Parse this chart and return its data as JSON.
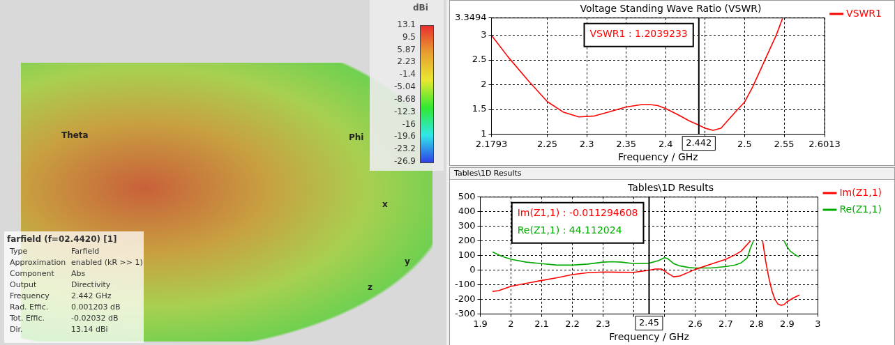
{
  "chart_data": [
    {
      "type": "other",
      "title": "farfield (f=02.4420) [1]",
      "clabel": "dBi",
      "annotations": [
        "Type",
        "Farfield",
        "Approximation",
        "enabled (kR >> 1)",
        "Component",
        "Abs",
        "Output",
        "Directivity",
        "Frequency",
        "2.442 GHz",
        "Rad. Effic.",
        "0.001203 dB",
        "Tot. Effic.",
        "-0.02032 dB",
        "Dir.",
        "13.14 dBi",
        "Theta",
        "Phi",
        "x",
        "y",
        "z",
        "13.1",
        "9.5",
        "5.87",
        "2.23",
        "-1.4",
        "-5.04",
        "-8.68",
        "-12.3",
        "-16",
        "-19.6",
        "-23.2",
        "-26.9"
      ]
    },
    {
      "type": "line",
      "title": "Voltage Standing Wave Ratio (VSWR)",
      "xlabel": "Frequency / GHz",
      "legend": "right",
      "grid": true,
      "xlim": [
        2.1793,
        2.6013
      ],
      "xticks": [
        2.1793,
        2.25,
        2.3,
        2.35,
        2.4,
        {
          "value": 2.45,
          "label": null
        },
        2.5,
        2.55,
        2.6013
      ],
      "ylim": [
        1,
        3.3494
      ],
      "yticks": [
        1,
        1.5,
        2,
        2.5,
        3,
        3.3494
      ],
      "series": [
        {
          "name": "VSWR1",
          "color": "#ff0000",
          "x": [
            2.1793,
            2.2,
            2.225,
            2.25,
            2.27,
            2.29,
            2.31,
            2.33,
            2.35,
            2.37,
            2.38,
            2.39,
            2.4,
            2.415,
            2.43,
            2.44,
            2.45,
            2.46,
            2.47,
            2.48,
            2.49,
            2.5,
            2.51,
            2.52,
            2.53,
            2.54,
            2.548
          ],
          "values": [
            3.0,
            2.57,
            2.1,
            1.66,
            1.45,
            1.35,
            1.37,
            1.46,
            1.55,
            1.6,
            1.6,
            1.58,
            1.52,
            1.4,
            1.27,
            1.2,
            1.12,
            1.08,
            1.12,
            1.3,
            1.48,
            1.65,
            1.95,
            2.3,
            2.65,
            3.0,
            3.34
          ]
        }
      ],
      "ref_lines": [
        {
          "axis": "x",
          "value": 2.442,
          "label": "2.442",
          "color": "#000000"
        }
      ],
      "annotations": [
        "VSWR1 : 1.2039233"
      ]
    },
    {
      "type": "line",
      "subtitle": "Tables\\1D Results",
      "title": "Tables\\1D Results",
      "xlabel": "Frequency / GHz",
      "legend": "right",
      "grid": true,
      "xlim": [
        1.9,
        3
      ],
      "xticks": [
        1.9,
        2,
        2.1,
        2.2,
        2.3,
        {
          "value": 2.4,
          "label": null
        },
        {
          "value": 2.5,
          "label": null
        },
        2.6,
        2.7,
        2.8,
        2.9,
        3
      ],
      "ylim": [
        -300,
        500
      ],
      "yticks": [
        -300,
        -200,
        -100,
        0,
        100,
        200,
        300,
        400,
        500
      ],
      "series": [
        {
          "name": "Im(Z1,1)",
          "color": "#ff0000",
          "x": [
            1.94,
            1.96,
            2.0,
            2.05,
            2.1,
            2.15,
            2.2,
            2.25,
            2.3,
            2.35,
            2.4,
            2.45,
            2.47,
            2.49,
            2.5,
            2.51,
            2.53,
            2.55,
            2.6,
            2.65,
            2.7,
            2.73,
            2.75,
            2.78,
            2.8,
            2.82,
            2.83,
            2.84,
            2.85,
            2.86,
            2.87,
            2.88,
            2.89,
            2.9,
            2.92,
            2.94
          ],
          "values": [
            -145,
            -140,
            -110,
            -90,
            -70,
            -52,
            -30,
            -17,
            -12,
            -14,
            -15,
            0,
            8,
            8,
            -5,
            -20,
            -45,
            -40,
            5,
            40,
            75,
            105,
            130,
            200,
            null,
            200,
            60,
            -50,
            -140,
            -200,
            -232,
            -240,
            -235,
            -215,
            -190,
            -170
          ]
        },
        {
          "name": "Re(Z1,1)",
          "color": "#00aa00",
          "x": [
            1.94,
            1.97,
            2.0,
            2.05,
            2.1,
            2.15,
            2.2,
            2.25,
            2.3,
            2.33,
            2.36,
            2.4,
            2.45,
            2.48,
            2.5,
            2.51,
            2.53,
            2.55,
            2.58,
            2.6,
            2.65,
            2.7,
            2.73,
            2.75,
            2.77,
            2.78,
            2.79,
            2.8,
            2.89,
            2.9,
            2.91,
            2.93,
            2.94
          ],
          "values": [
            125,
            95,
            75,
            55,
            45,
            35,
            35,
            42,
            55,
            58,
            55,
            45,
            48,
            65,
            85,
            80,
            45,
            30,
            18,
            15,
            15,
            25,
            35,
            50,
            85,
            150,
            200,
            null,
            200,
            160,
            130,
            100,
            90
          ]
        }
      ],
      "ref_lines": [
        {
          "axis": "x",
          "value": 2.45,
          "label": "2.45",
          "color": "#000000"
        }
      ],
      "annotations": [
        "Im(Z1,1) : -0.011294608",
        "Re(Z1,1) : 44.112024"
      ]
    }
  ]
}
